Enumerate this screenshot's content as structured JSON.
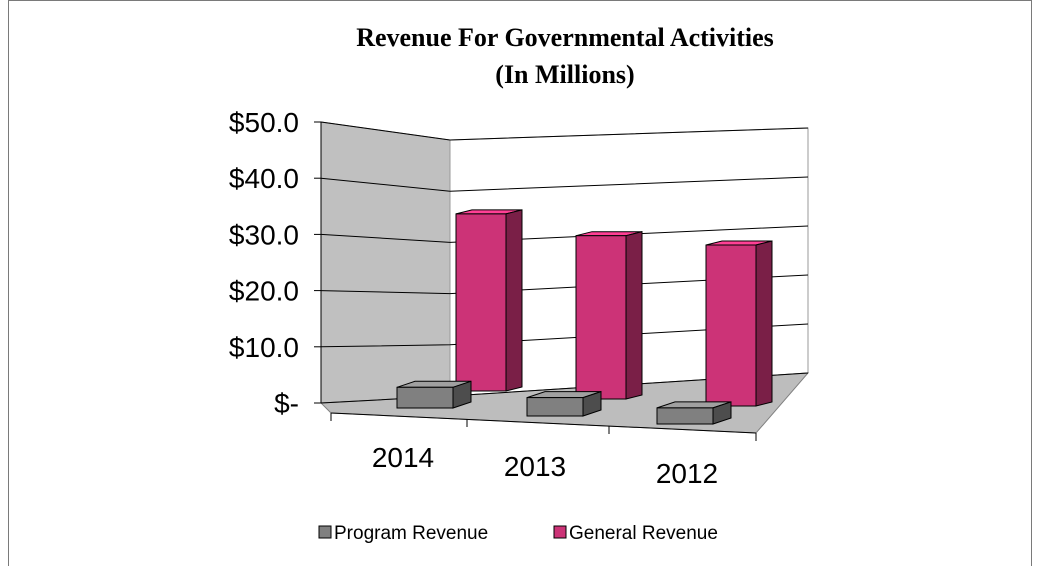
{
  "chart_data": {
    "type": "bar",
    "title": "Revenue For Governmental Activities",
    "subtitle": "(In Millions)",
    "categories": [
      "2014",
      "2013",
      "2012"
    ],
    "series": [
      {
        "name": "Program Revenue",
        "values": [
          4.5,
          4.0,
          3.5
        ],
        "color": "#808080"
      },
      {
        "name": "General Revenue",
        "values": [
          38.5,
          35.5,
          35.0
        ],
        "color": "#cc3377"
      }
    ],
    "y_ticks": [
      "$-",
      "$10.0",
      "$20.0",
      "$30.0",
      "$40.0",
      "$50.0"
    ],
    "ylim": [
      0,
      50
    ],
    "grid": true,
    "legend_position": "bottom"
  }
}
